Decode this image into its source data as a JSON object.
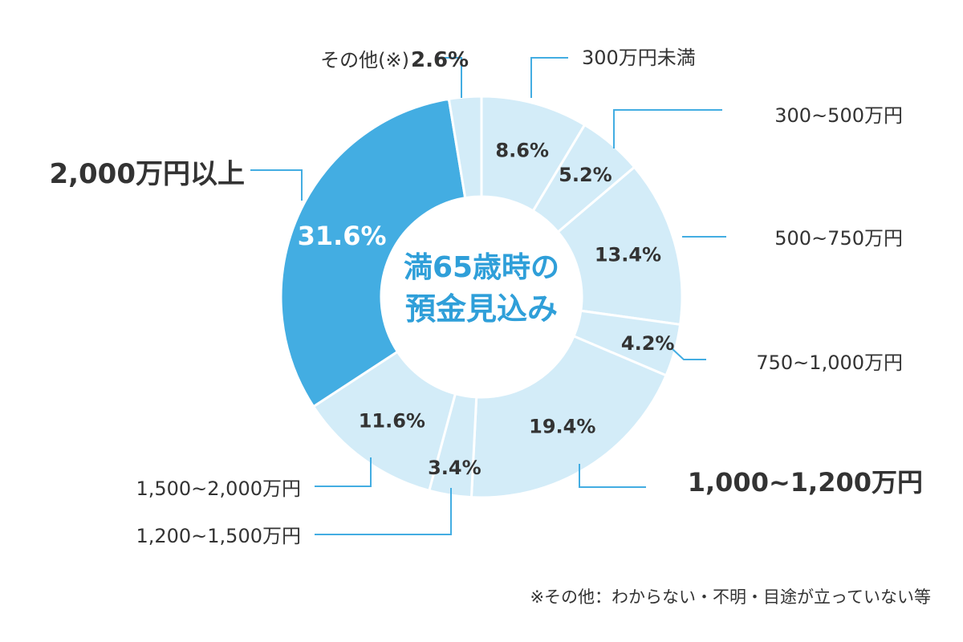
{
  "chart_data": {
    "type": "pie",
    "center_title": [
      "満65歳時の",
      "預金見込み"
    ],
    "slices": [
      {
        "label": "300万円未満",
        "value": 8.6,
        "pct_text": "8.6%"
      },
      {
        "label": "300~500万円",
        "value": 5.2,
        "pct_text": "5.2%"
      },
      {
        "label": "500~750万円",
        "value": 13.4,
        "pct_text": "13.4%"
      },
      {
        "label": "750~1,000万円",
        "value": 4.2,
        "pct_text": "4.2%"
      },
      {
        "label": "1,000~1,200万円",
        "value": 19.4,
        "pct_text": "19.4%"
      },
      {
        "label": "1,200~1,500万円",
        "value": 3.4,
        "pct_text": "3.4%"
      },
      {
        "label": "1,500~2,000万円",
        "value": 11.6,
        "pct_text": "11.6%"
      },
      {
        "label": "2,000万円以上",
        "value": 31.6,
        "pct_text": "31.6%"
      },
      {
        "label": "その他(※)",
        "value": 2.6,
        "pct_text": "2.6%"
      }
    ],
    "footnote": "※その他：わからない・不明・目途が立っていない等"
  },
  "colors": {
    "light": "#d3ecf8",
    "highlight": "#43ade2",
    "line": "#43ade2",
    "center_text": "#2f9fd9",
    "text": "#333333"
  }
}
